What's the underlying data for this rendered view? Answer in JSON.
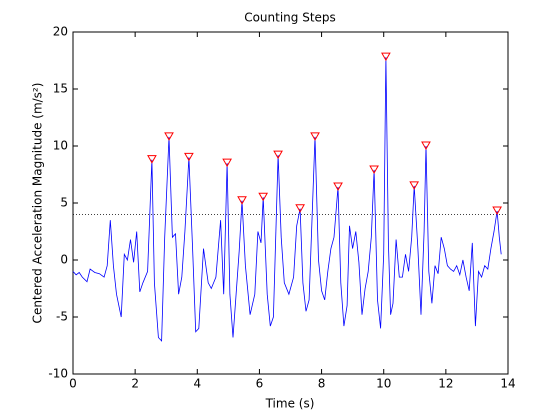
{
  "chart_data": {
    "type": "line",
    "title": "Counting Steps",
    "xlabel": "Time (s)",
    "ylabel": "Centered Acceleration Magnitude (m/s²)",
    "xlim": [
      0,
      14
    ],
    "ylim": [
      -10,
      20
    ],
    "xticks": [
      0,
      2,
      4,
      6,
      8,
      10,
      12,
      14
    ],
    "yticks": [
      -10,
      -5,
      0,
      5,
      10,
      15,
      20
    ],
    "threshold": 4,
    "series": [
      {
        "color": "#0000ff",
        "marker": "none",
        "x": [
          0,
          0.1,
          0.2,
          0.3,
          0.45,
          0.55,
          0.7,
          0.85,
          1.0,
          1.1,
          1.2,
          1.3,
          1.4,
          1.55,
          1.65,
          1.75,
          1.85,
          1.95,
          2.05,
          2.15,
          2.25,
          2.4,
          2.54,
          2.62,
          2.75,
          2.85,
          2.95,
          3.09,
          3.2,
          3.3,
          3.4,
          3.5,
          3.6,
          3.73,
          3.85,
          3.95,
          4.05,
          4.2,
          4.35,
          4.45,
          4.6,
          4.75,
          4.85,
          4.96,
          5.05,
          5.15,
          5.25,
          5.35,
          5.44,
          5.55,
          5.7,
          5.85,
          5.95,
          6.05,
          6.12,
          6.25,
          6.35,
          6.45,
          6.6,
          6.7,
          6.8,
          6.95,
          7.1,
          7.2,
          7.31,
          7.4,
          7.5,
          7.6,
          7.79,
          7.9,
          8.0,
          8.1,
          8.2,
          8.3,
          8.4,
          8.53,
          8.62,
          8.72,
          8.82,
          8.9,
          9.0,
          9.1,
          9.2,
          9.3,
          9.4,
          9.5,
          9.6,
          9.69,
          9.8,
          9.9,
          10.0,
          10.07,
          10.15,
          10.22,
          10.3,
          10.4,
          10.5,
          10.6,
          10.7,
          10.8,
          10.9,
          10.98,
          11.1,
          11.2,
          11.3,
          11.36,
          11.45,
          11.55,
          11.65,
          11.75,
          11.85,
          11.95,
          12.05,
          12.15,
          12.25,
          12.35,
          12.45,
          12.55,
          12.65,
          12.75,
          12.85,
          12.95,
          13.05,
          13.15,
          13.25,
          13.35,
          13.45,
          13.55,
          13.65,
          13.72,
          13.78
        ],
        "values": [
          -1,
          -1.3,
          -1.1,
          -1.5,
          -1.9,
          -0.8,
          -1.1,
          -1.2,
          -1.5,
          -0.5,
          3.5,
          -0.5,
          -3,
          -5,
          0.5,
          0,
          1.8,
          -0.2,
          2.5,
          -2.8,
          -2,
          -1,
          8.8,
          -2,
          -6.8,
          -7.1,
          2,
          10.8,
          2,
          2.3,
          -3,
          -1.5,
          2.5,
          9.0,
          1,
          -6.3,
          -6,
          1,
          -2,
          -2.5,
          -1.5,
          3.5,
          -3,
          8.5,
          -3,
          -6.8,
          -3,
          0.8,
          5.2,
          -0.5,
          -4.8,
          -3,
          2.5,
          1.5,
          5.5,
          -3,
          -5.8,
          -5,
          9.2,
          2,
          -2,
          -3,
          -1.5,
          3,
          4.5,
          -2,
          -4.5,
          -3.5,
          10.8,
          0,
          -2.7,
          -3.5,
          -1,
          1,
          2,
          6.4,
          -2,
          -5.8,
          -4,
          3,
          1,
          2.5,
          -0.2,
          -4.8,
          -2.5,
          -1,
          2,
          7.9,
          -3.5,
          -6,
          0.5,
          17.8,
          1.5,
          -4.8,
          -3.8,
          1.8,
          -1.5,
          -1.5,
          0.5,
          -1,
          2,
          6.5,
          1,
          -4.8,
          2.5,
          10.0,
          -1,
          -3.8,
          -0.5,
          -1.2,
          2,
          1,
          -0.5,
          -0.8,
          -1,
          -0.5,
          -1.3,
          0,
          -1.5,
          -2.7,
          1.5,
          -5.8,
          -1,
          -1.5,
          -0.5,
          -0.8,
          1,
          2.5,
          4.3,
          2,
          0.5
        ]
      },
      {
        "color": "#ff0000",
        "marker": "triangle-down",
        "x": [
          2.54,
          3.09,
          3.73,
          4.96,
          5.44,
          6.12,
          6.6,
          7.31,
          7.79,
          8.53,
          9.69,
          10.07,
          10.98,
          11.36,
          13.65
        ],
        "values": [
          8.8,
          10.8,
          9.0,
          8.5,
          5.2,
          5.5,
          9.2,
          4.5,
          10.8,
          6.4,
          7.9,
          17.8,
          6.5,
          10.0,
          4.3
        ]
      }
    ]
  }
}
